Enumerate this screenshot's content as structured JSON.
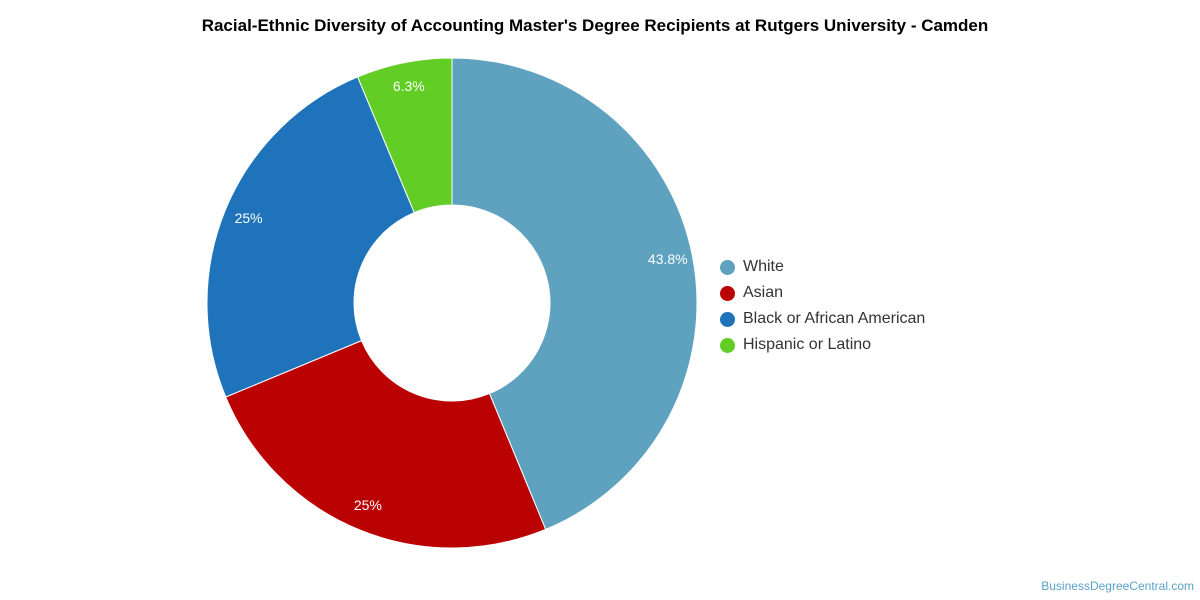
{
  "chart_data": {
    "type": "pie",
    "title": "Racial-Ethnic Diversity of Accounting Master's Degree Recipients at Rutgers University - Camden",
    "categories": [
      "White",
      "Asian",
      "Black or African American",
      "Hispanic or Latino"
    ],
    "values": [
      43.8,
      25,
      25,
      6.3
    ],
    "data_labels": [
      "43.8%",
      "25%",
      "25%",
      "6.3%"
    ],
    "colors": [
      "#5ea2c0",
      "#bb0202",
      "#1f73ba",
      "#62cd25"
    ],
    "donut": true,
    "legend_position": "right"
  },
  "watermark": "BusinessDegreeCentral.com"
}
